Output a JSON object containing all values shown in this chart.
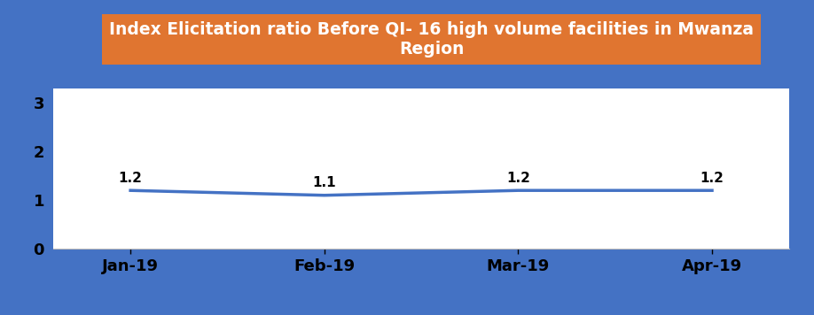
{
  "title_line1": "Index Elicitation ratio Before QI- 16 high volume facilities in Mwanza",
  "title_line2": "Region",
  "title_bg_color": "#E07530",
  "title_text_color": "#FFFFFF",
  "background_color": "#4472C4",
  "plot_bg_color": "#FFFFFF",
  "x_labels": [
    "Jan-19",
    "Feb-19",
    "Mar-19",
    "Apr-19"
  ],
  "y_values": [
    1.2,
    1.1,
    1.2,
    1.2
  ],
  "line_color": "#4472C4",
  "line_width": 2.5,
  "data_label_color": "#000000",
  "data_label_fontsize": 11,
  "yticks": [
    0,
    1,
    2,
    3
  ],
  "ylim": [
    0,
    3.3
  ],
  "tick_label_fontsize": 13,
  "xtick_label_color": "#000000",
  "ytick_label_color": "#000000",
  "title_fontsize": 13.5
}
